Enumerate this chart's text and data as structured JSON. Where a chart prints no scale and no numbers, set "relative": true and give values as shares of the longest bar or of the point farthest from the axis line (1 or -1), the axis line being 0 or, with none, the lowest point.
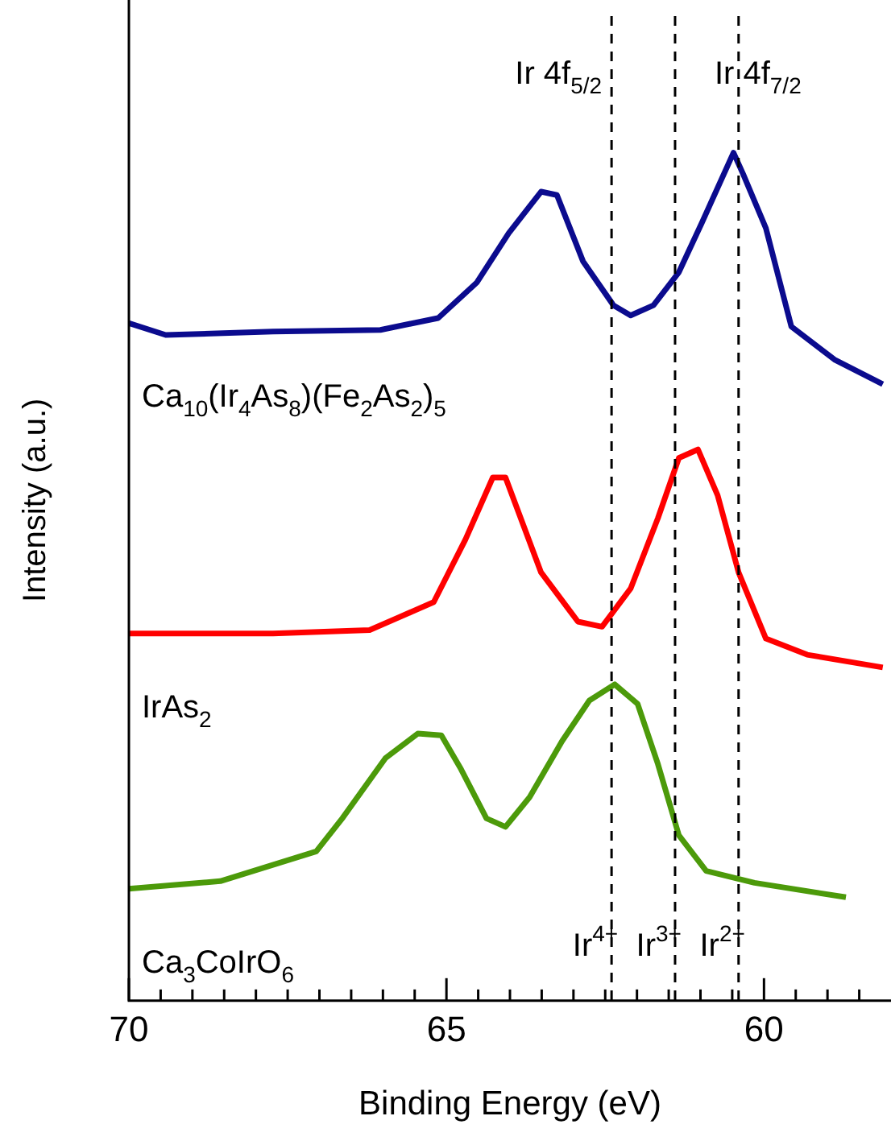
{
  "chart_data": {
    "type": "line",
    "relative": true,
    "xlabel": "Binding Energy (eV)",
    "ylabel": "Intensity (a.u.)",
    "xlim": [
      70,
      58
    ],
    "xticks": [
      70,
      {
        "value": 69.5,
        "label": null
      },
      {
        "value": 69,
        "label": null
      },
      {
        "value": 68.5,
        "label": null
      },
      {
        "value": 68,
        "label": null
      },
      {
        "value": 67.5,
        "label": null
      },
      {
        "value": 67,
        "label": null
      },
      {
        "value": 66.5,
        "label": null
      },
      {
        "value": 66,
        "label": null
      },
      {
        "value": 65.5,
        "label": null
      },
      65,
      {
        "value": 64.5,
        "label": null
      },
      {
        "value": 64,
        "label": null
      },
      {
        "value": 63.5,
        "label": null
      },
      {
        "value": 63,
        "label": null
      },
      {
        "value": 62.5,
        "label": null
      },
      {
        "value": 62,
        "label": null
      },
      {
        "value": 61.5,
        "label": null
      },
      {
        "value": 61,
        "label": null
      },
      {
        "value": 60.5,
        "label": null
      },
      60,
      {
        "value": 59.5,
        "label": null
      },
      {
        "value": 59,
        "label": null
      },
      {
        "value": 58.5,
        "label": null
      }
    ],
    "legend": false,
    "grid": false,
    "marker": "none",
    "series": [
      {
        "name": "Ca$_{10}$(Ir$_{4}$As$_{8}$)(Fe$_{2}$As$_{2}$)$_{5}$",
        "color": "#0b0b8e",
        "x": [
          70,
          69.42,
          67.73,
          66.04,
          65.13,
          64.52,
          64.02,
          63.51,
          63.26,
          62.85,
          62.37,
          62.1,
          61.74,
          61.34,
          60.98,
          60.48,
          60.33,
          59.97,
          59.57,
          58.89,
          58.13
        ],
        "values": [
          0.799,
          0.785,
          0.789,
          0.791,
          0.805,
          0.847,
          0.905,
          0.954,
          0.95,
          0.872,
          0.82,
          0.808,
          0.82,
          0.859,
          0.917,
          1,
          0.975,
          0.911,
          0.795,
          0.756,
          0.727
        ]
      },
      {
        "name": "IrAs$_{2}$",
        "color": "#ff0000",
        "x": [
          70,
          67.73,
          66.21,
          65.2,
          64.7,
          64.27,
          64.07,
          63.51,
          62.93,
          62.55,
          62.1,
          61.67,
          61.34,
          61.04,
          60.73,
          60.4,
          59.97,
          59.32,
          58.13
        ],
        "values": [
          0.433,
          0.433,
          0.437,
          0.47,
          0.544,
          0.617,
          0.617,
          0.505,
          0.447,
          0.441,
          0.486,
          0.569,
          0.64,
          0.65,
          0.596,
          0.505,
          0.427,
          0.408,
          0.393
        ]
      },
      {
        "name": "Ca$_{3}$CoIrO$_{6}$",
        "color": "#4c9a0a",
        "x": [
          70,
          68.56,
          67.05,
          66.64,
          65.96,
          65.45,
          65.08,
          64.77,
          64.37,
          64.07,
          63.69,
          63.18,
          62.75,
          62.35,
          61.99,
          61.67,
          61.34,
          60.91,
          60.15,
          58.71
        ],
        "values": [
          0.132,
          0.141,
          0.176,
          0.215,
          0.286,
          0.315,
          0.313,
          0.273,
          0.215,
          0.205,
          0.24,
          0.306,
          0.354,
          0.373,
          0.35,
          0.279,
          0.195,
          0.153,
          0.139,
          0.122
        ]
      }
    ],
    "ref_lines": [
      {
        "axis": "x",
        "value": 62.4,
        "label": "Ir$^{4+}$",
        "color": "#000000",
        "line_style": "dashed"
      },
      {
        "axis": "x",
        "value": 61.4,
        "label": "Ir$^{3+}$",
        "color": "#000000",
        "line_style": "dashed"
      },
      {
        "axis": "x",
        "value": 60.4,
        "label": "Ir$^{2+}$",
        "color": "#000000",
        "line_style": "dashed"
      }
    ],
    "annotations": [
      "Ir 4f$_{5/2}$",
      "Ir 4f$_{7/2}$"
    ]
  }
}
